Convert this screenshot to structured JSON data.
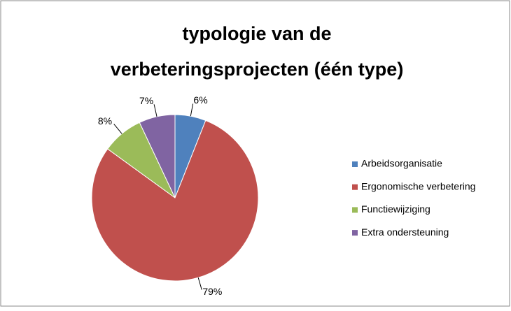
{
  "chart_data": {
    "type": "pie",
    "title": "typologie van de verbeteringsprojecten (één type)",
    "categories": [
      "Arbeidsorganisatie",
      "Ergonomische verbetering",
      "Functiewijziging",
      "Extra ondersteuning"
    ],
    "values": [
      6,
      79,
      8,
      7
    ],
    "value_labels": [
      "6%",
      "79%",
      "8%",
      "7%"
    ],
    "colors": [
      "#4f81bd",
      "#c0504d",
      "#9bbb59",
      "#8064a2"
    ],
    "legend": "right"
  }
}
